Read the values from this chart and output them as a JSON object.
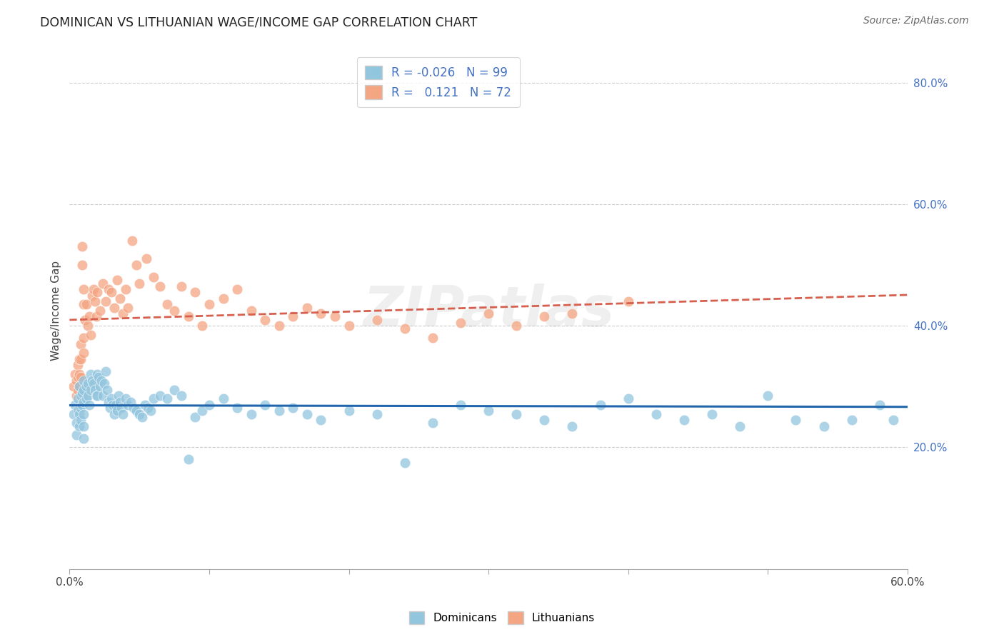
{
  "title": "DOMINICAN VS LITHUANIAN WAGE/INCOME GAP CORRELATION CHART",
  "source": "Source: ZipAtlas.com",
  "ylabel": "Wage/Income Gap",
  "right_yticks": [
    "80.0%",
    "60.0%",
    "40.0%",
    "20.0%"
  ],
  "right_ytick_vals": [
    0.8,
    0.6,
    0.4,
    0.2
  ],
  "watermark": "ZIPatlas",
  "legend_blue_r": "R = -0.026",
  "legend_blue_n": "N = 99",
  "legend_pink_r": "R =   0.121",
  "legend_pink_n": "N = 72",
  "blue_color": "#92c5de",
  "pink_color": "#f4a582",
  "trendline_blue_color": "#2166ac",
  "trendline_pink_color": "#d6604d",
  "dominicans_x": [
    0.003,
    0.004,
    0.005,
    0.005,
    0.006,
    0.006,
    0.007,
    0.007,
    0.007,
    0.008,
    0.008,
    0.008,
    0.009,
    0.009,
    0.01,
    0.01,
    0.01,
    0.01,
    0.01,
    0.01,
    0.012,
    0.012,
    0.013,
    0.013,
    0.014,
    0.015,
    0.015,
    0.016,
    0.017,
    0.018,
    0.019,
    0.02,
    0.02,
    0.021,
    0.022,
    0.023,
    0.024,
    0.025,
    0.026,
    0.027,
    0.028,
    0.029,
    0.03,
    0.031,
    0.032,
    0.033,
    0.034,
    0.035,
    0.036,
    0.037,
    0.038,
    0.04,
    0.042,
    0.044,
    0.046,
    0.048,
    0.05,
    0.052,
    0.054,
    0.056,
    0.058,
    0.06,
    0.065,
    0.07,
    0.075,
    0.08,
    0.085,
    0.09,
    0.095,
    0.1,
    0.11,
    0.12,
    0.13,
    0.14,
    0.15,
    0.16,
    0.17,
    0.18,
    0.2,
    0.22,
    0.24,
    0.26,
    0.28,
    0.3,
    0.32,
    0.34,
    0.36,
    0.38,
    0.4,
    0.42,
    0.44,
    0.46,
    0.48,
    0.5,
    0.52,
    0.54,
    0.56,
    0.58,
    0.59
  ],
  "dominicans_y": [
    0.255,
    0.27,
    0.24,
    0.22,
    0.28,
    0.26,
    0.3,
    0.255,
    0.235,
    0.285,
    0.265,
    0.245,
    0.29,
    0.27,
    0.31,
    0.295,
    0.275,
    0.255,
    0.235,
    0.215,
    0.3,
    0.28,
    0.305,
    0.285,
    0.27,
    0.32,
    0.295,
    0.31,
    0.305,
    0.295,
    0.285,
    0.32,
    0.285,
    0.315,
    0.3,
    0.31,
    0.285,
    0.305,
    0.325,
    0.295,
    0.275,
    0.265,
    0.28,
    0.27,
    0.255,
    0.27,
    0.26,
    0.285,
    0.275,
    0.265,
    0.255,
    0.28,
    0.27,
    0.275,
    0.265,
    0.26,
    0.255,
    0.25,
    0.27,
    0.265,
    0.26,
    0.28,
    0.285,
    0.28,
    0.295,
    0.285,
    0.18,
    0.25,
    0.26,
    0.27,
    0.28,
    0.265,
    0.255,
    0.27,
    0.26,
    0.265,
    0.255,
    0.245,
    0.26,
    0.255,
    0.175,
    0.24,
    0.27,
    0.26,
    0.255,
    0.245,
    0.235,
    0.27,
    0.28,
    0.255,
    0.245,
    0.255,
    0.235,
    0.285,
    0.245,
    0.235,
    0.245,
    0.27,
    0.245
  ],
  "lithuanians_x": [
    0.003,
    0.004,
    0.005,
    0.005,
    0.006,
    0.006,
    0.006,
    0.007,
    0.007,
    0.007,
    0.008,
    0.008,
    0.008,
    0.009,
    0.009,
    0.01,
    0.01,
    0.01,
    0.01,
    0.011,
    0.012,
    0.013,
    0.014,
    0.015,
    0.016,
    0.017,
    0.018,
    0.019,
    0.02,
    0.022,
    0.024,
    0.026,
    0.028,
    0.03,
    0.032,
    0.034,
    0.036,
    0.038,
    0.04,
    0.042,
    0.045,
    0.048,
    0.05,
    0.055,
    0.06,
    0.065,
    0.07,
    0.075,
    0.08,
    0.085,
    0.09,
    0.095,
    0.1,
    0.11,
    0.12,
    0.13,
    0.14,
    0.15,
    0.16,
    0.17,
    0.18,
    0.19,
    0.2,
    0.22,
    0.24,
    0.26,
    0.28,
    0.3,
    0.32,
    0.34,
    0.36,
    0.4
  ],
  "lithuanians_y": [
    0.3,
    0.32,
    0.285,
    0.31,
    0.315,
    0.335,
    0.295,
    0.32,
    0.345,
    0.3,
    0.37,
    0.345,
    0.315,
    0.5,
    0.53,
    0.46,
    0.435,
    0.38,
    0.355,
    0.41,
    0.435,
    0.4,
    0.415,
    0.385,
    0.45,
    0.46,
    0.44,
    0.415,
    0.455,
    0.425,
    0.47,
    0.44,
    0.46,
    0.455,
    0.43,
    0.475,
    0.445,
    0.42,
    0.46,
    0.43,
    0.54,
    0.5,
    0.47,
    0.51,
    0.48,
    0.465,
    0.435,
    0.425,
    0.465,
    0.415,
    0.455,
    0.4,
    0.435,
    0.445,
    0.46,
    0.425,
    0.41,
    0.4,
    0.415,
    0.43,
    0.42,
    0.415,
    0.4,
    0.41,
    0.395,
    0.38,
    0.405,
    0.42,
    0.4,
    0.415,
    0.42,
    0.44
  ],
  "xlim": [
    0.0,
    0.6
  ],
  "ylim": [
    0.0,
    0.85
  ],
  "grid_color": "#cccccc",
  "background_color": "#ffffff"
}
